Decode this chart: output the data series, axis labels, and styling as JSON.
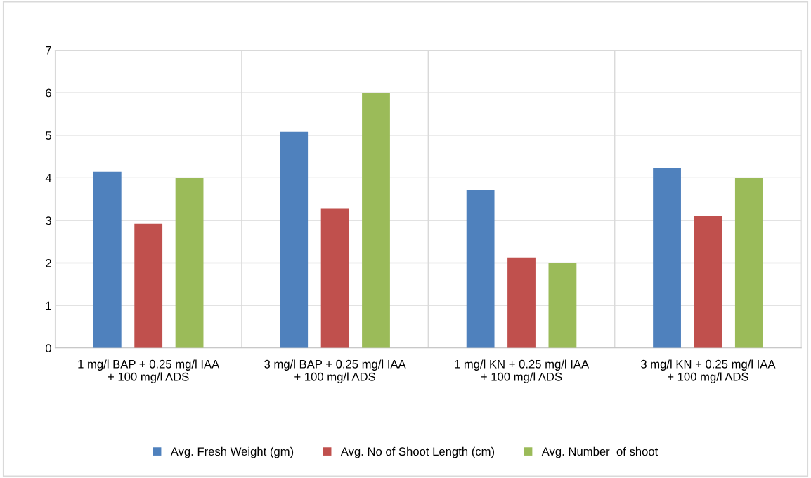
{
  "chart_data": {
    "type": "bar",
    "categories": [
      "1 mg/l BAP + 0.25 mg/l IAA + 100 mg/l ADS",
      "3 mg/l BAP + 0.25 mg/l IAA + 100 mg/l ADS",
      "1 mg/l KN + 0.25 mg/l IAA + 100 mg/l ADS",
      "3 mg/l KN + 0.25 mg/l IAA + 100 mg/l ADS"
    ],
    "series": [
      {
        "name": "Avg. Fresh Weight (gm)",
        "color": "#4f81bd",
        "values": [
          4.14,
          5.08,
          3.71,
          4.23
        ]
      },
      {
        "name": "Avg. No of Shoot Length (cm)",
        "color": "#c0504d",
        "values": [
          2.92,
          3.27,
          2.13,
          3.1
        ]
      },
      {
        "name": "Avg. Number  of shoot",
        "color": "#9bbb59",
        "values": [
          4.0,
          6.0,
          2.0,
          4.0
        ]
      }
    ],
    "ylim": [
      0,
      7
    ],
    "yticks": [
      0,
      1,
      2,
      3,
      4,
      5,
      6,
      7
    ],
    "grid": true,
    "legend": "bottom"
  }
}
